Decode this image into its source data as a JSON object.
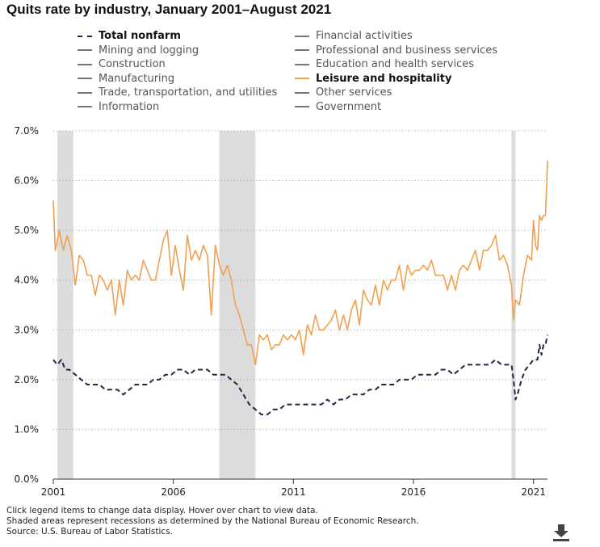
{
  "title": "Quits rate by industry, January 2001–August 2021",
  "legend": {
    "col1": [
      {
        "label": "Total nonfarm",
        "style": "dash",
        "color": "#1a2b44",
        "active": true
      },
      {
        "label": "Mining and logging",
        "style": "solid",
        "color": "#777777",
        "active": false
      },
      {
        "label": "Construction",
        "style": "solid",
        "color": "#777777",
        "active": false
      },
      {
        "label": "Manufacturing",
        "style": "solid",
        "color": "#777777",
        "active": false
      },
      {
        "label": "Trade, transportation, and utilities",
        "style": "solid",
        "color": "#777777",
        "active": false
      },
      {
        "label": "Information",
        "style": "solid",
        "color": "#777777",
        "active": false
      }
    ],
    "col2": [
      {
        "label": "Financial activities",
        "style": "solid",
        "color": "#777777",
        "active": false
      },
      {
        "label": "Professional and business services",
        "style": "solid",
        "color": "#777777",
        "active": false
      },
      {
        "label": "Education and health services",
        "style": "solid",
        "color": "#777777",
        "active": false
      },
      {
        "label": "Leisure and hospitality",
        "style": "solid",
        "color": "#f0a050",
        "active": true
      },
      {
        "label": "Other services",
        "style": "solid",
        "color": "#777777",
        "active": false
      },
      {
        "label": "Government",
        "style": "solid",
        "color": "#777777",
        "active": false
      }
    ]
  },
  "footnotes": {
    "line1": "Click legend items to change data display. Hover over chart to view data.",
    "line2": "Shaded areas represent recessions as determined by the National Bureau of Economic Research.",
    "line3": "Source: U.S. Bureau of Labor Statistics."
  },
  "icons": {
    "download": "download-icon"
  },
  "chart_data": {
    "type": "line",
    "xlabel": "",
    "ylabel": "",
    "x_ticks": [
      "2001",
      "2006",
      "2011",
      "2016",
      "2021"
    ],
    "y_ticks": [
      "0.0%",
      "1.0%",
      "2.0%",
      "3.0%",
      "4.0%",
      "5.0%",
      "6.0%",
      "7.0%"
    ],
    "ylim": [
      0,
      7
    ],
    "xlim": [
      "2001-01",
      "2021-08"
    ],
    "grid": "horizontal dotted",
    "recessions": [
      {
        "start": "2001-03",
        "end": "2001-11"
      },
      {
        "start": "2007-12",
        "end": "2009-06"
      },
      {
        "start": "2020-02",
        "end": "2020-04"
      }
    ],
    "series": [
      {
        "name": "Total nonfarm",
        "color": "#1a2b44",
        "dash": true,
        "points": [
          [
            "2001-01",
            2.4
          ],
          [
            "2001-03",
            2.3
          ],
          [
            "2001-05",
            2.4
          ],
          [
            "2001-07",
            2.2
          ],
          [
            "2001-09",
            2.2
          ],
          [
            "2001-12",
            2.1
          ],
          [
            "2002-03",
            2.0
          ],
          [
            "2002-06",
            1.9
          ],
          [
            "2002-09",
            1.9
          ],
          [
            "2002-12",
            1.9
          ],
          [
            "2003-03",
            1.8
          ],
          [
            "2003-06",
            1.8
          ],
          [
            "2003-09",
            1.8
          ],
          [
            "2003-12",
            1.7
          ],
          [
            "2004-03",
            1.8
          ],
          [
            "2004-06",
            1.9
          ],
          [
            "2004-09",
            1.9
          ],
          [
            "2004-12",
            1.9
          ],
          [
            "2005-03",
            2.0
          ],
          [
            "2005-06",
            2.0
          ],
          [
            "2005-09",
            2.1
          ],
          [
            "2005-12",
            2.1
          ],
          [
            "2006-03",
            2.2
          ],
          [
            "2006-06",
            2.2
          ],
          [
            "2006-09",
            2.1
          ],
          [
            "2006-12",
            2.2
          ],
          [
            "2007-03",
            2.2
          ],
          [
            "2007-06",
            2.2
          ],
          [
            "2007-09",
            2.1
          ],
          [
            "2007-12",
            2.1
          ],
          [
            "2008-03",
            2.1
          ],
          [
            "2008-06",
            2.0
          ],
          [
            "2008-09",
            1.9
          ],
          [
            "2008-12",
            1.7
          ],
          [
            "2009-03",
            1.5
          ],
          [
            "2009-06",
            1.4
          ],
          [
            "2009-09",
            1.3
          ],
          [
            "2009-12",
            1.3
          ],
          [
            "2010-03",
            1.4
          ],
          [
            "2010-06",
            1.4
          ],
          [
            "2010-09",
            1.5
          ],
          [
            "2010-12",
            1.5
          ],
          [
            "2011-03",
            1.5
          ],
          [
            "2011-06",
            1.5
          ],
          [
            "2011-09",
            1.5
          ],
          [
            "2011-12",
            1.5
          ],
          [
            "2012-03",
            1.5
          ],
          [
            "2012-06",
            1.6
          ],
          [
            "2012-09",
            1.5
          ],
          [
            "2012-12",
            1.6
          ],
          [
            "2013-03",
            1.6
          ],
          [
            "2013-06",
            1.7
          ],
          [
            "2013-09",
            1.7
          ],
          [
            "2013-12",
            1.7
          ],
          [
            "2014-03",
            1.8
          ],
          [
            "2014-06",
            1.8
          ],
          [
            "2014-09",
            1.9
          ],
          [
            "2014-12",
            1.9
          ],
          [
            "2015-03",
            1.9
          ],
          [
            "2015-06",
            2.0
          ],
          [
            "2015-09",
            2.0
          ],
          [
            "2015-12",
            2.0
          ],
          [
            "2016-03",
            2.1
          ],
          [
            "2016-06",
            2.1
          ],
          [
            "2016-09",
            2.1
          ],
          [
            "2016-12",
            2.1
          ],
          [
            "2017-03",
            2.2
          ],
          [
            "2017-06",
            2.2
          ],
          [
            "2017-09",
            2.1
          ],
          [
            "2017-12",
            2.2
          ],
          [
            "2018-03",
            2.3
          ],
          [
            "2018-06",
            2.3
          ],
          [
            "2018-09",
            2.3
          ],
          [
            "2018-12",
            2.3
          ],
          [
            "2019-03",
            2.3
          ],
          [
            "2019-06",
            2.4
          ],
          [
            "2019-09",
            2.3
          ],
          [
            "2019-12",
            2.3
          ],
          [
            "2020-02",
            2.3
          ],
          [
            "2020-03",
            2.0
          ],
          [
            "2020-04",
            1.6
          ],
          [
            "2020-05",
            1.7
          ],
          [
            "2020-07",
            2.0
          ],
          [
            "2020-09",
            2.2
          ],
          [
            "2020-11",
            2.3
          ],
          [
            "2021-01",
            2.4
          ],
          [
            "2021-03",
            2.4
          ],
          [
            "2021-04",
            2.7
          ],
          [
            "2021-05",
            2.5
          ],
          [
            "2021-06",
            2.7
          ],
          [
            "2021-07",
            2.7
          ],
          [
            "2021-08",
            2.9
          ]
        ]
      },
      {
        "name": "Leisure and hospitality",
        "color": "#f0a050",
        "dash": false,
        "points": [
          [
            "2001-01",
            5.6
          ],
          [
            "2001-02",
            4.6
          ],
          [
            "2001-04",
            5.0
          ],
          [
            "2001-06",
            4.6
          ],
          [
            "2001-08",
            4.9
          ],
          [
            "2001-10",
            4.6
          ],
          [
            "2001-12",
            3.9
          ],
          [
            "2002-02",
            4.5
          ],
          [
            "2002-04",
            4.4
          ],
          [
            "2002-06",
            4.1
          ],
          [
            "2002-08",
            4.1
          ],
          [
            "2002-10",
            3.7
          ],
          [
            "2002-12",
            4.1
          ],
          [
            "2003-02",
            4.0
          ],
          [
            "2003-04",
            3.8
          ],
          [
            "2003-06",
            4.0
          ],
          [
            "2003-08",
            3.3
          ],
          [
            "2003-10",
            4.0
          ],
          [
            "2003-12",
            3.5
          ],
          [
            "2004-02",
            4.2
          ],
          [
            "2004-04",
            4.0
          ],
          [
            "2004-06",
            4.1
          ],
          [
            "2004-08",
            4.0
          ],
          [
            "2004-10",
            4.4
          ],
          [
            "2004-12",
            4.2
          ],
          [
            "2005-02",
            4.0
          ],
          [
            "2005-04",
            4.0
          ],
          [
            "2005-06",
            4.4
          ],
          [
            "2005-08",
            4.8
          ],
          [
            "2005-10",
            5.0
          ],
          [
            "2005-12",
            4.1
          ],
          [
            "2006-02",
            4.7
          ],
          [
            "2006-04",
            4.2
          ],
          [
            "2006-06",
            3.8
          ],
          [
            "2006-08",
            4.9
          ],
          [
            "2006-10",
            4.4
          ],
          [
            "2006-12",
            4.6
          ],
          [
            "2007-02",
            4.4
          ],
          [
            "2007-04",
            4.7
          ],
          [
            "2007-06",
            4.5
          ],
          [
            "2007-08",
            3.3
          ],
          [
            "2007-10",
            4.7
          ],
          [
            "2007-12",
            4.3
          ],
          [
            "2008-02",
            4.1
          ],
          [
            "2008-04",
            4.3
          ],
          [
            "2008-06",
            4.0
          ],
          [
            "2008-08",
            3.5
          ],
          [
            "2008-10",
            3.3
          ],
          [
            "2008-12",
            3.0
          ],
          [
            "2009-02",
            2.7
          ],
          [
            "2009-04",
            2.7
          ],
          [
            "2009-06",
            2.3
          ],
          [
            "2009-08",
            2.9
          ],
          [
            "2009-10",
            2.8
          ],
          [
            "2009-12",
            2.9
          ],
          [
            "2010-02",
            2.6
          ],
          [
            "2010-04",
            2.7
          ],
          [
            "2010-06",
            2.7
          ],
          [
            "2010-08",
            2.9
          ],
          [
            "2010-10",
            2.8
          ],
          [
            "2010-12",
            2.9
          ],
          [
            "2011-02",
            2.8
          ],
          [
            "2011-04",
            3.0
          ],
          [
            "2011-06",
            2.5
          ],
          [
            "2011-08",
            3.1
          ],
          [
            "2011-10",
            2.9
          ],
          [
            "2011-12",
            3.3
          ],
          [
            "2012-02",
            3.0
          ],
          [
            "2012-04",
            3.0
          ],
          [
            "2012-06",
            3.1
          ],
          [
            "2012-08",
            3.2
          ],
          [
            "2012-10",
            3.4
          ],
          [
            "2012-12",
            3.0
          ],
          [
            "2013-02",
            3.3
          ],
          [
            "2013-04",
            3.0
          ],
          [
            "2013-06",
            3.4
          ],
          [
            "2013-08",
            3.6
          ],
          [
            "2013-10",
            3.1
          ],
          [
            "2013-12",
            3.8
          ],
          [
            "2014-02",
            3.6
          ],
          [
            "2014-04",
            3.5
          ],
          [
            "2014-06",
            3.9
          ],
          [
            "2014-08",
            3.5
          ],
          [
            "2014-10",
            4.0
          ],
          [
            "2014-12",
            3.8
          ],
          [
            "2015-02",
            4.0
          ],
          [
            "2015-04",
            4.0
          ],
          [
            "2015-06",
            4.3
          ],
          [
            "2015-08",
            3.8
          ],
          [
            "2015-10",
            4.3
          ],
          [
            "2015-12",
            4.1
          ],
          [
            "2016-02",
            4.2
          ],
          [
            "2016-04",
            4.2
          ],
          [
            "2016-06",
            4.3
          ],
          [
            "2016-08",
            4.2
          ],
          [
            "2016-10",
            4.4
          ],
          [
            "2016-12",
            4.1
          ],
          [
            "2017-02",
            4.1
          ],
          [
            "2017-04",
            4.1
          ],
          [
            "2017-06",
            3.8
          ],
          [
            "2017-08",
            4.1
          ],
          [
            "2017-10",
            3.8
          ],
          [
            "2017-12",
            4.2
          ],
          [
            "2018-02",
            4.3
          ],
          [
            "2018-04",
            4.2
          ],
          [
            "2018-06",
            4.4
          ],
          [
            "2018-08",
            4.6
          ],
          [
            "2018-10",
            4.2
          ],
          [
            "2018-12",
            4.6
          ],
          [
            "2019-02",
            4.6
          ],
          [
            "2019-04",
            4.7
          ],
          [
            "2019-06",
            4.9
          ],
          [
            "2019-08",
            4.4
          ],
          [
            "2019-10",
            4.5
          ],
          [
            "2019-12",
            4.3
          ],
          [
            "2020-02",
            3.9
          ],
          [
            "2020-03",
            3.2
          ],
          [
            "2020-04",
            3.6
          ],
          [
            "2020-06",
            3.5
          ],
          [
            "2020-08",
            4.1
          ],
          [
            "2020-10",
            4.5
          ],
          [
            "2020-12",
            4.4
          ],
          [
            "2021-01",
            5.2
          ],
          [
            "2021-02",
            4.7
          ],
          [
            "2021-03",
            4.6
          ],
          [
            "2021-04",
            5.3
          ],
          [
            "2021-05",
            5.2
          ],
          [
            "2021-06",
            5.3
          ],
          [
            "2021-07",
            5.3
          ],
          [
            "2021-08",
            6.4
          ]
        ]
      }
    ]
  }
}
